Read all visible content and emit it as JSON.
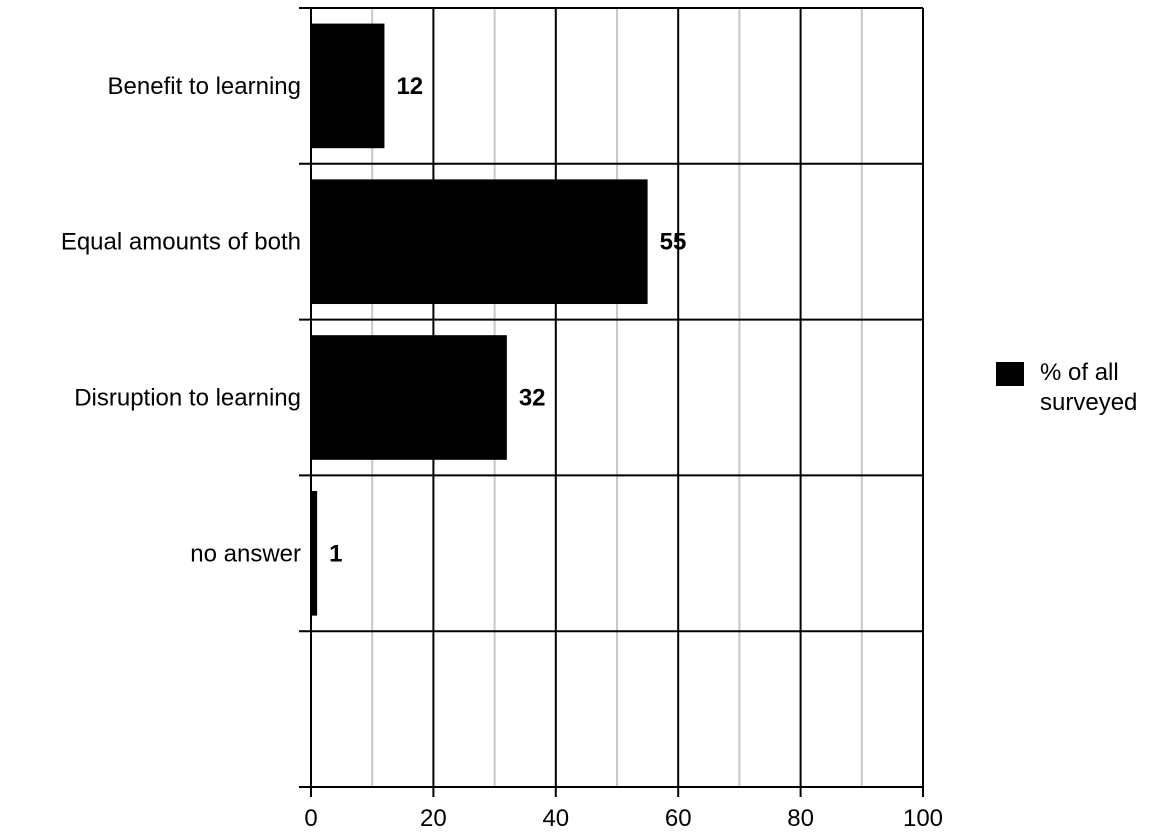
{
  "chart_data": {
    "type": "bar",
    "orientation": "horizontal",
    "categories": [
      "Benefit to learning",
      "Equal amounts of both",
      "Disruption to learning",
      "no answer"
    ],
    "series": [
      {
        "name": "% of all surveyed",
        "values": [
          12,
          55,
          32,
          1
        ],
        "color": "#000000"
      }
    ],
    "legend_lines": [
      "% of all",
      "surveyed"
    ],
    "xlim": [
      0,
      100
    ],
    "x_ticks": [
      "0",
      "20",
      "40",
      "60",
      "80",
      "100"
    ],
    "x_minor_grid": [
      10,
      30,
      50,
      70,
      90
    ],
    "category_slots": 5,
    "grid": true,
    "legend_position": "right",
    "title": "",
    "xlabel": "",
    "ylabel": ""
  }
}
